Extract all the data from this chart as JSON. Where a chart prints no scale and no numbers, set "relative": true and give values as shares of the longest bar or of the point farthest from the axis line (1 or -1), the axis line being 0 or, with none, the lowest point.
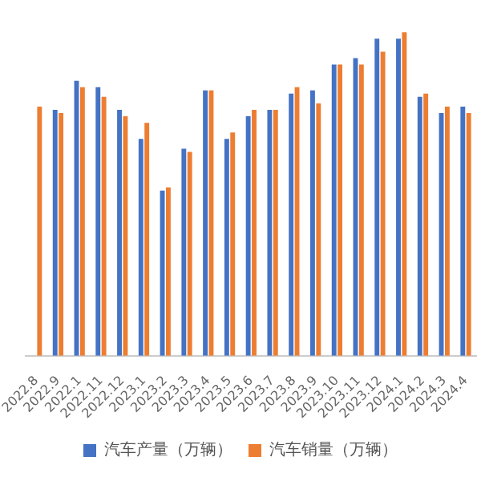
{
  "chart_data": {
    "type": "bar",
    "relative": true,
    "categories": [
      "2022.8",
      "2022.9",
      "2022.1",
      "2022.11",
      "2022.12",
      "2023.1",
      "2023.2",
      "2023.3",
      "2023.4",
      "2023.5",
      "2023.6",
      "2023.7",
      "2023.8",
      "2023.9",
      "2023.10",
      "2023.11",
      "2023.12",
      "2024.1",
      "2024.2",
      "2024.3",
      "2024.4"
    ],
    "series": [
      {
        "name": "汽车产量（万辆）",
        "color": "#4472c4",
        "values": [
          null,
          0.76,
          0.85,
          0.83,
          0.76,
          0.67,
          0.51,
          0.64,
          0.82,
          0.67,
          0.74,
          0.76,
          0.81,
          0.82,
          0.9,
          0.92,
          0.98,
          0.98,
          0.8,
          0.75,
          0.77
        ]
      },
      {
        "name": "汽车销量（万辆）",
        "color": "#ed7d31",
        "values": [
          0.77,
          0.75,
          0.83,
          0.8,
          0.74,
          0.72,
          0.52,
          0.63,
          0.82,
          0.69,
          0.76,
          0.76,
          0.83,
          0.78,
          0.9,
          0.9,
          0.94,
          1,
          0.81,
          0.77,
          0.75
        ]
      }
    ],
    "grid": false,
    "legend": "bottom"
  }
}
